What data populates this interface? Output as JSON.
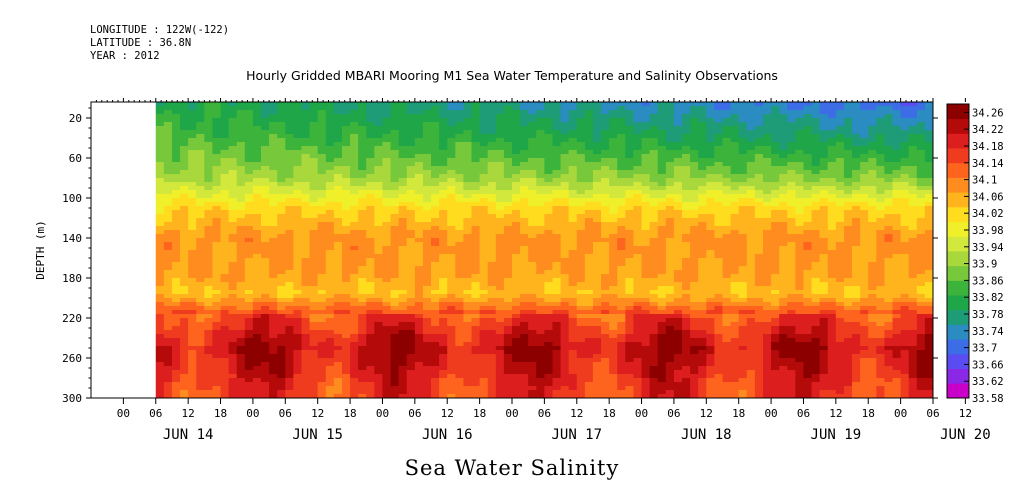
{
  "header": {
    "longitude": "LONGITUDE : 122W(-122)",
    "latitude": "LATITUDE : 36.8N",
    "year": "YEAR : 2012"
  },
  "chart_data": {
    "type": "heatmap",
    "title": "Hourly Gridded MBARI Mooring M1 Sea Water Temperature and Salinity Observations",
    "xlabel": "Sea Water Salinity",
    "ylabel": "DEPTH (m)",
    "x_hour_ticks": [
      "00",
      "06",
      "12",
      "18",
      "00",
      "06",
      "12",
      "18",
      "00",
      "06",
      "12",
      "18",
      "00",
      "06",
      "12",
      "18",
      "00",
      "06",
      "12",
      "18",
      "00",
      "06",
      "12",
      "18",
      "00",
      "06",
      "12"
    ],
    "x_day_labels": [
      "JUN 14",
      "JUN 15",
      "JUN 16",
      "JUN 17",
      "JUN 18",
      "JUN 19",
      "JUN 20"
    ],
    "x_range_hours_since_jun13_18": [
      0,
      156
    ],
    "y_ticks": [
      20,
      60,
      100,
      140,
      180,
      220,
      260,
      300
    ],
    "y_range": [
      300,
      4
    ],
    "y_reversed": true,
    "colorbar_levels": [
      "34.26",
      "34.22",
      "34.18",
      "34.14",
      "34.1",
      "34.06",
      "34.02",
      "33.98",
      "33.94",
      "33.9",
      "33.86",
      "33.82",
      "33.78",
      "33.74",
      "33.7",
      "33.66",
      "33.62",
      "33.58"
    ],
    "colorbar_range": [
      33.58,
      34.28
    ],
    "colors": [
      "#c800c8",
      "#8a28e6",
      "#5a4cf0",
      "#3c6ce6",
      "#2a8cc0",
      "#1e9c78",
      "#1fa648",
      "#3cb43c",
      "#78c83c",
      "#a8d83c",
      "#d2e83c",
      "#f0f02a",
      "#ffdc1e",
      "#ffb41e",
      "#ff8c1e",
      "#ff641e",
      "#f03c1e",
      "#dc1e1e",
      "#b40a0a",
      "#8c0000"
    ],
    "salinity_profile_by_depth": [
      {
        "depth": 4,
        "value": 33.82
      },
      {
        "depth": 40,
        "value": 33.86
      },
      {
        "depth": 80,
        "value": 33.92
      },
      {
        "depth": 110,
        "value": 34.02
      },
      {
        "depth": 140,
        "value": 34.08
      },
      {
        "depth": 175,
        "value": 34.07
      },
      {
        "depth": 195,
        "value": 34.04
      },
      {
        "depth": 215,
        "value": 34.14
      },
      {
        "depth": 250,
        "value": 34.22
      },
      {
        "depth": 280,
        "value": 34.18
      },
      {
        "depth": 300,
        "value": 34.16
      }
    ],
    "data_start_hour": 12,
    "missing_region_note": ""
  }
}
